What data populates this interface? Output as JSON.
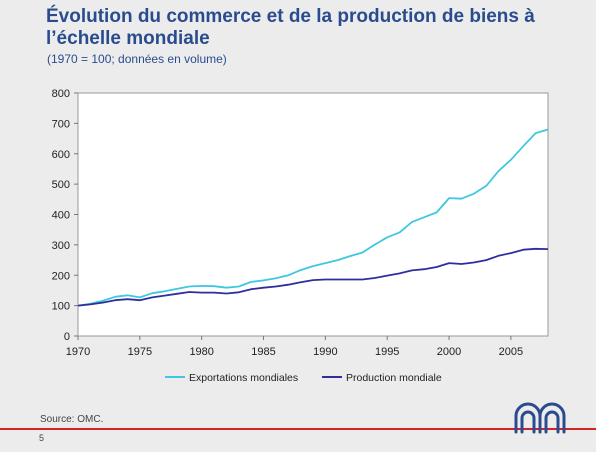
{
  "slide": {
    "title": "Évolution du commerce et de la production de biens à l’échelle mondiale",
    "subtitle": "(1970 = 100; données en volume)",
    "source": "Source: OMC.",
    "page_number": "5",
    "accent_color": "#d42027",
    "title_color": "#2a4c8f"
  },
  "chart_data": {
    "type": "line",
    "title": "",
    "xlabel": "",
    "ylabel": "",
    "xlim": [
      1970,
      2008
    ],
    "ylim": [
      0,
      800
    ],
    "x_ticks": [
      1970,
      1975,
      1980,
      1985,
      1990,
      1995,
      2000,
      2005
    ],
    "y_ticks": [
      0,
      100,
      200,
      300,
      400,
      500,
      600,
      700,
      800
    ],
    "grid": false,
    "legend_position": "bottom",
    "x": [
      1970,
      1971,
      1972,
      1973,
      1974,
      1975,
      1976,
      1977,
      1978,
      1979,
      1980,
      1981,
      1982,
      1983,
      1984,
      1985,
      1986,
      1987,
      1988,
      1989,
      1990,
      1991,
      1992,
      1993,
      1994,
      1995,
      1996,
      1997,
      1998,
      1999,
      2000,
      2001,
      2002,
      2003,
      2004,
      2005,
      2006,
      2007,
      2008
    ],
    "series": [
      {
        "name": "Exportations mondiales",
        "color": "#3ec8e0",
        "values": [
          100,
          106,
          116,
          129,
          134,
          127,
          141,
          147,
          155,
          163,
          165,
          164,
          159,
          163,
          178,
          183,
          190,
          200,
          217,
          230,
          240,
          250,
          263,
          275,
          301,
          325,
          341,
          375,
          391,
          407,
          454,
          452,
          468,
          494,
          543,
          580,
          625,
          668,
          680
        ]
      },
      {
        "name": "Production mondiale",
        "color": "#2e2f9e",
        "values": [
          100,
          104,
          110,
          118,
          121,
          118,
          127,
          133,
          139,
          145,
          143,
          143,
          140,
          144,
          154,
          159,
          163,
          169,
          177,
          184,
          186,
          186,
          186,
          186,
          191,
          199,
          206,
          216,
          220,
          227,
          240,
          237,
          242,
          250,
          264,
          273,
          284,
          287,
          286
        ]
      }
    ]
  }
}
